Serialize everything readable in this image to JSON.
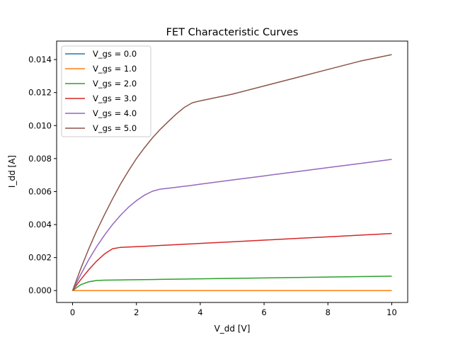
{
  "chart_data": {
    "type": "line",
    "title": "FET Characteristic Curves",
    "xlabel": "V_dd [V]",
    "ylabel": "I_dd [A]",
    "xlim": [
      -0.5,
      10.5
    ],
    "ylim": [
      -0.00072,
      0.01512
    ],
    "xticks": [
      0,
      2,
      4,
      6,
      8,
      10
    ],
    "xtick_labels": [
      "0",
      "2",
      "4",
      "6",
      "8",
      "10"
    ],
    "yticks": [
      0.0,
      0.002,
      0.004,
      0.006,
      0.008,
      0.01,
      0.012,
      0.014
    ],
    "ytick_labels": [
      "0.000",
      "0.002",
      "0.004",
      "0.006",
      "0.008",
      "0.010",
      "0.012",
      "0.014"
    ],
    "grid": false,
    "legend": "upper-left",
    "x": [
      0,
      0.25,
      0.5,
      0.75,
      1,
      1.25,
      1.5,
      1.75,
      2,
      2.25,
      2.5,
      2.75,
      3,
      3.25,
      3.5,
      3.75,
      4,
      5,
      6,
      7,
      8,
      9,
      10
    ],
    "series": [
      {
        "name": "V_gs = 0.0",
        "color": "#1f77b4",
        "values": [
          0,
          0,
          0,
          0,
          0,
          0,
          0,
          0,
          0,
          0,
          0,
          0,
          0,
          0,
          0,
          0,
          0,
          0,
          0,
          0,
          0,
          0,
          0
        ]
      },
      {
        "name": "V_gs = 1.0",
        "color": "#ff7f0e",
        "values": [
          0,
          0,
          0,
          0,
          0,
          0,
          0,
          0,
          0,
          0,
          0,
          0,
          0,
          0,
          0,
          0,
          0,
          0,
          0,
          0,
          0,
          0,
          0
        ]
      },
      {
        "name": "V_gs = 2.0",
        "color": "#2ca02c",
        "values": [
          0,
          0.00035,
          0.00053,
          0.00061,
          0.000632,
          0.000638,
          0.000645,
          0.000652,
          0.000658,
          0.000665,
          0.000672,
          0.000678,
          0.000685,
          0.000692,
          0.000698,
          0.000705,
          0.000712,
          0.000738,
          0.000765,
          0.000792,
          0.000818,
          0.000845,
          0.000872
        ]
      },
      {
        "name": "V_gs = 3.0",
        "color": "#d62728",
        "values": [
          0,
          0.000656,
          0.00125,
          0.00178,
          0.00222,
          0.00253,
          0.00262,
          0.00264,
          0.002658,
          0.002683,
          0.002708,
          0.002733,
          0.002758,
          0.002783,
          0.002808,
          0.002833,
          0.002858,
          0.002958,
          0.003058,
          0.003158,
          0.003258,
          0.003358,
          0.003458
        ]
      },
      {
        "name": "V_gs = 4.0",
        "color": "#9467bd",
        "values": [
          0,
          0.00095,
          0.00185,
          0.00265,
          0.00336,
          0.004,
          0.00456,
          0.00505,
          0.00545,
          0.00578,
          0.00602,
          0.00615,
          0.0062,
          0.00626,
          0.00632,
          0.00638,
          0.00645,
          0.0067,
          0.00695,
          0.0072,
          0.00745,
          0.0077,
          0.00795
        ]
      },
      {
        "name": "V_gs = 5.0",
        "color": "#8c564b",
        "values": [
          0,
          0.0013,
          0.0025,
          0.0036,
          0.0046,
          0.00555,
          0.00645,
          0.00725,
          0.008,
          0.00865,
          0.00925,
          0.00978,
          0.01025,
          0.0107,
          0.0111,
          0.01138,
          0.0115,
          0.0119,
          0.0124,
          0.0129,
          0.0134,
          0.0139,
          0.0143
        ]
      }
    ]
  }
}
